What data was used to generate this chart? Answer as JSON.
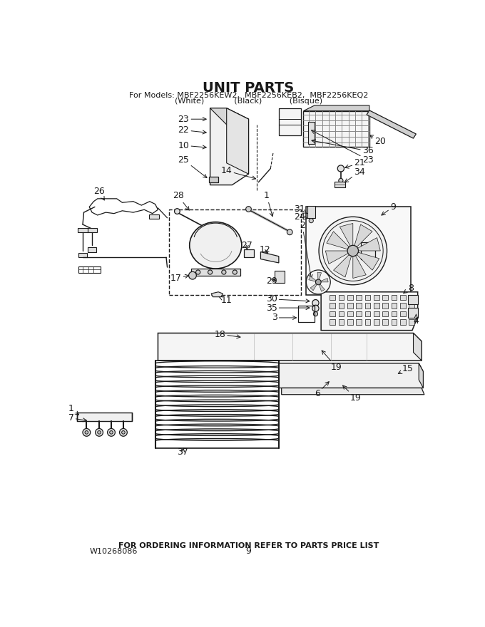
{
  "title": "UNIT PARTS",
  "subtitle1": "For Models: MBF2256KEW2,  MBF2256KEB2,  MBF2256KEQ2",
  "subtitle2": "(White)            (Black)           (Bisque)",
  "footer1": "FOR ORDERING INFORMATION REFER TO PARTS PRICE LIST",
  "footer2": "W10268086",
  "footer3": "9",
  "bg_color": "#ffffff",
  "lc": "#1a1a1a",
  "title_fontsize": 14,
  "sub_fontsize": 8,
  "label_fontsize": 9,
  "footer_fontsize": 8
}
